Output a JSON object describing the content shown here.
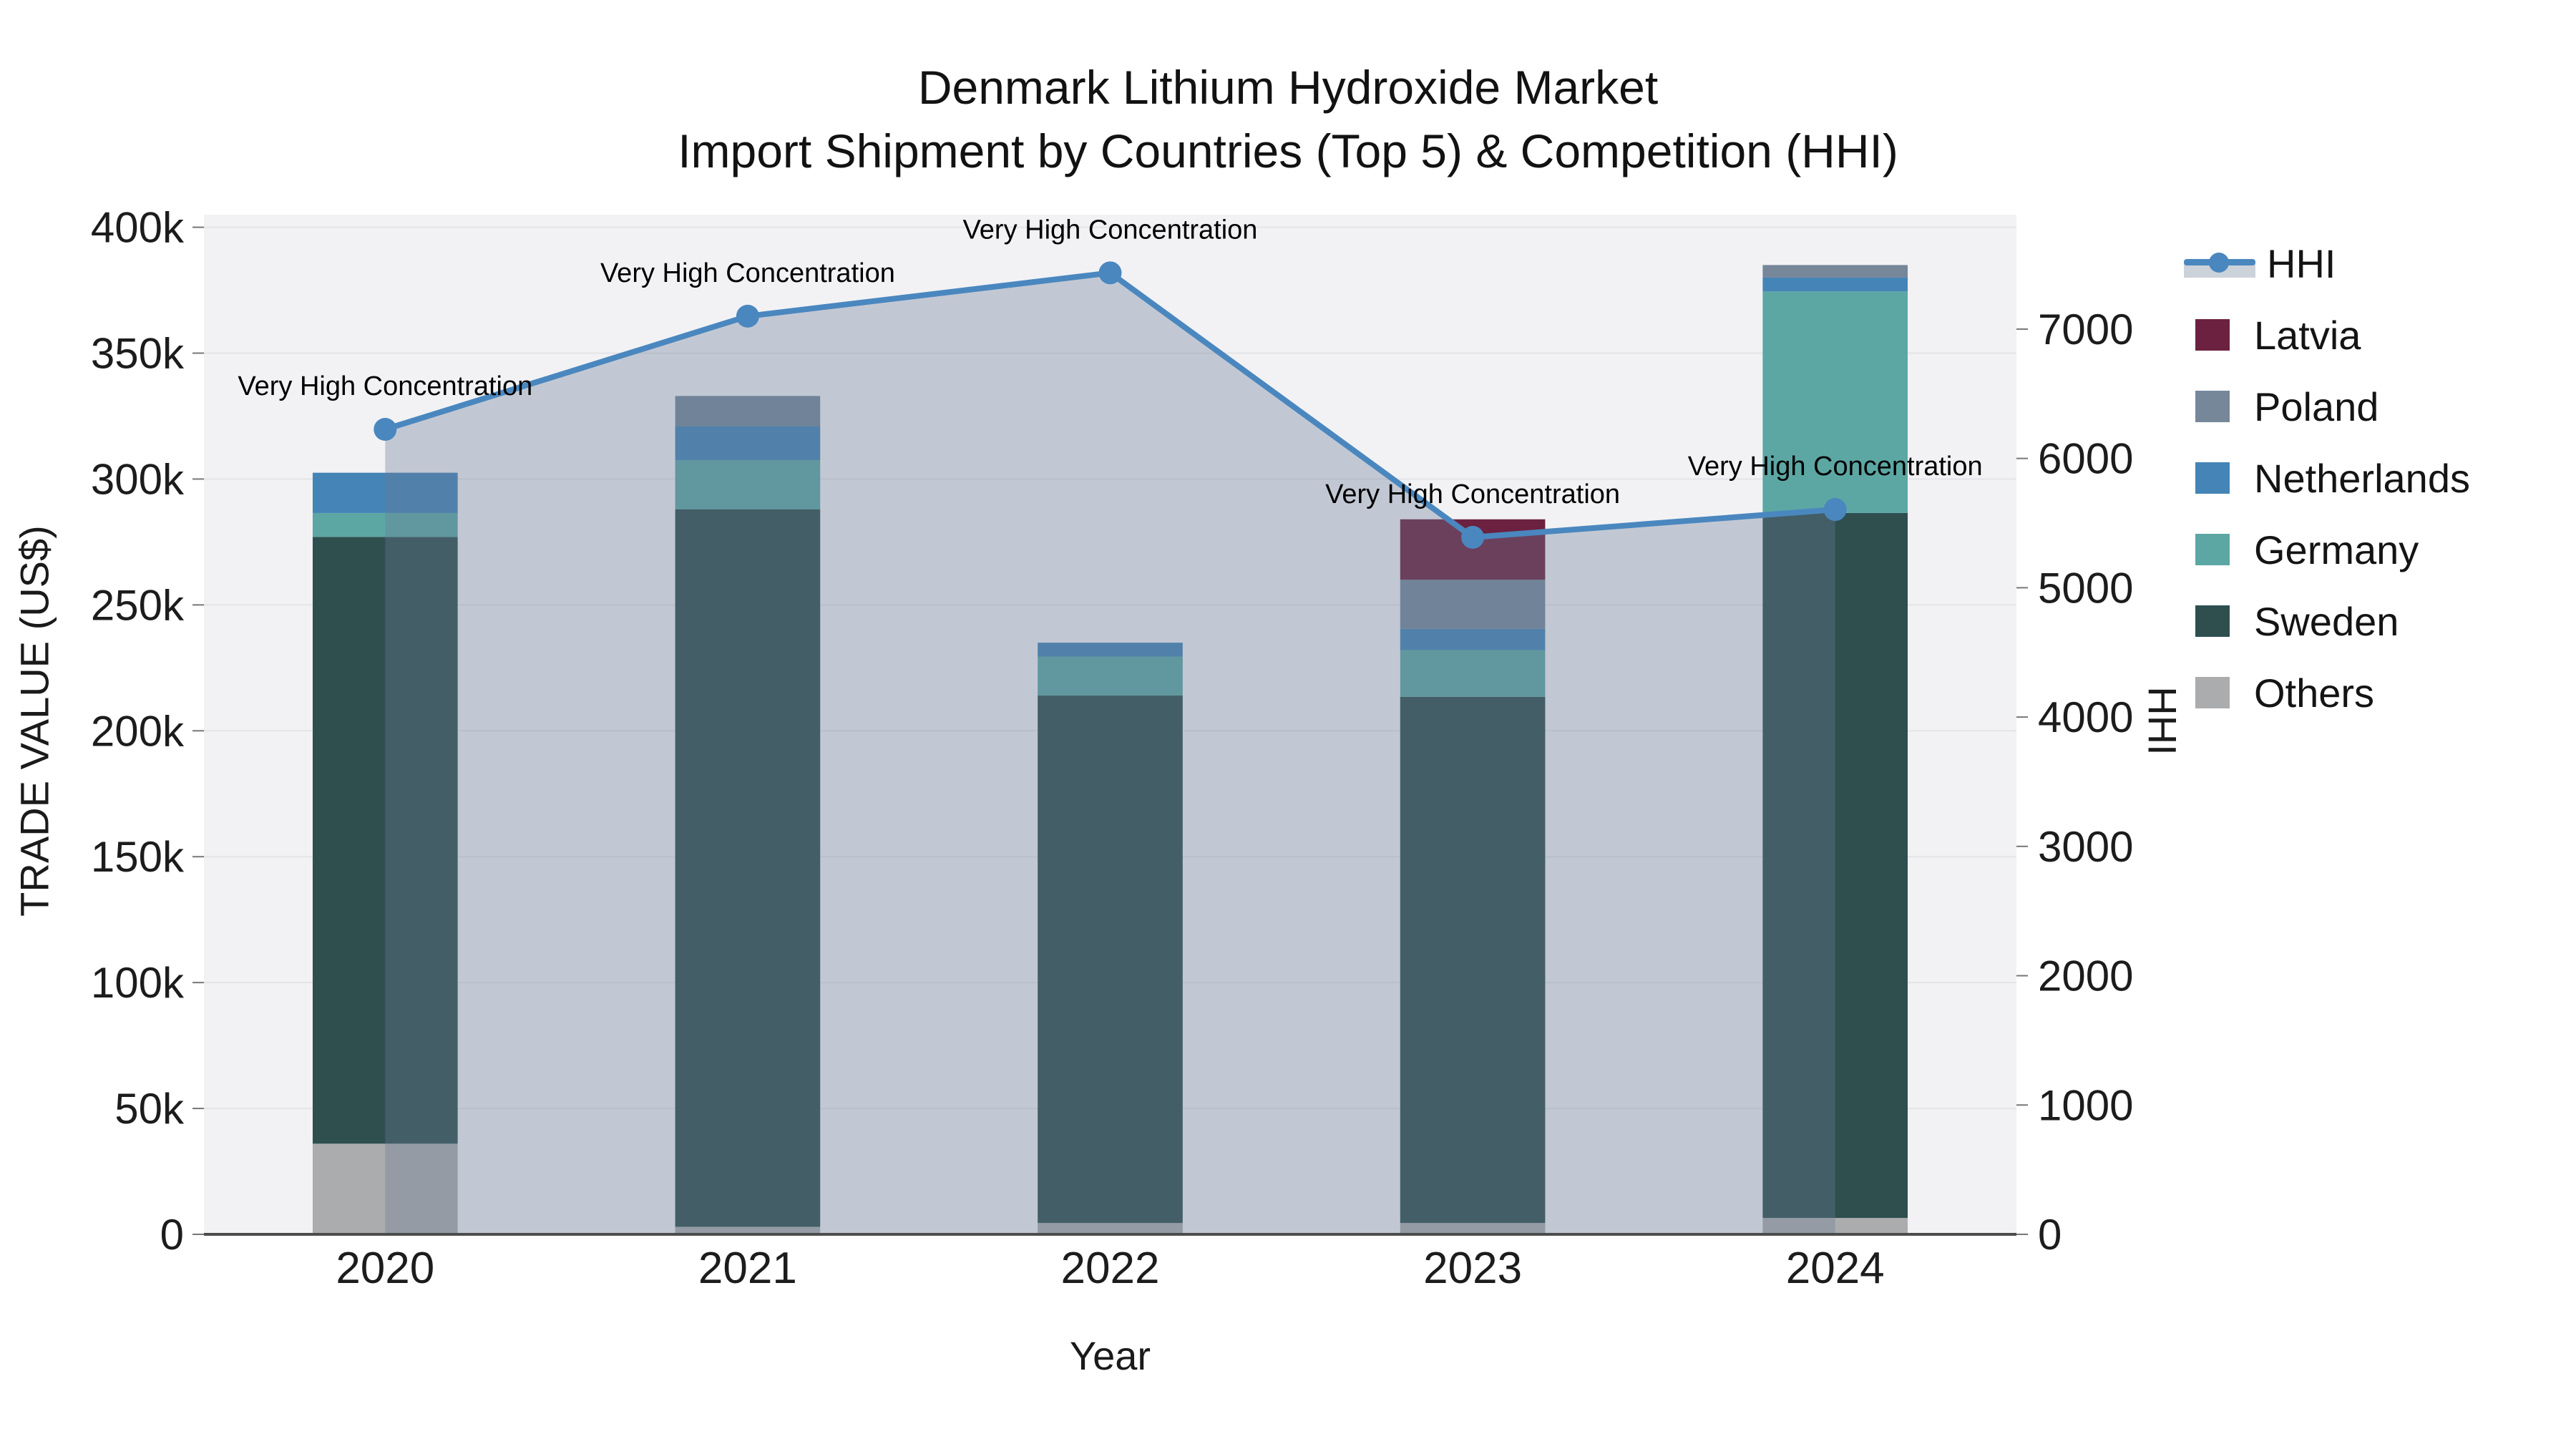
{
  "title": {
    "line1": "Denmark Lithium Hydroxide Market",
    "line2": "Import Shipment by Countries (Top 5) & Competition (HHI)"
  },
  "axes": {
    "x": {
      "title": "Year"
    },
    "y_left": {
      "title": "TRADE VALUE (US$)"
    },
    "y_right": {
      "title": "HHI"
    }
  },
  "legend": {
    "items": [
      {
        "label": "HHI",
        "type": "line",
        "color": "#4a87bf"
      },
      {
        "label": "Latvia",
        "type": "swatch",
        "color": "#6c2140"
      },
      {
        "label": "Poland",
        "type": "swatch",
        "color": "#76879a"
      },
      {
        "label": "Netherlands",
        "type": "swatch",
        "color": "#4484b6"
      },
      {
        "label": "Germany",
        "type": "swatch",
        "color": "#5ca7a4"
      },
      {
        "label": "Sweden",
        "type": "swatch",
        "color": "#2f4f4f"
      },
      {
        "label": "Others",
        "type": "swatch",
        "color": "#abacad"
      }
    ]
  },
  "chart_data": {
    "type": "bar+line",
    "categories": [
      "2020",
      "2021",
      "2022",
      "2023",
      "2024"
    ],
    "bar_stack_order_note": "bottom to top",
    "series": [
      {
        "name": "Others",
        "color": "#abacad",
        "values": [
          36000,
          3000,
          4500,
          4500,
          6500
        ]
      },
      {
        "name": "Sweden",
        "color": "#2f4f4f",
        "values": [
          241000,
          285000,
          209500,
          209000,
          280000
        ]
      },
      {
        "name": "Germany",
        "color": "#5ca7a4",
        "values": [
          9500,
          19500,
          15500,
          18500,
          88000
        ]
      },
      {
        "name": "Netherlands",
        "color": "#4484b6",
        "values": [
          16000,
          13500,
          5500,
          8500,
          5500
        ]
      },
      {
        "name": "Poland",
        "color": "#76879a",
        "values": [
          0,
          12000,
          0,
          19500,
          5000
        ]
      },
      {
        "name": "Latvia",
        "color": "#6c2140",
        "values": [
          0,
          0,
          0,
          24000,
          0
        ]
      }
    ],
    "bar_totals": [
      302500,
      333000,
      235000,
      284000,
      385000
    ],
    "hhi_line": {
      "name": "HHI",
      "color": "#4a87bf",
      "area_fill": "rgba(106,122,148,0.35)",
      "values": [
        6225,
        7100,
        7435,
        5390,
        5605
      ]
    },
    "annotations": [
      {
        "category": "2020",
        "text": "Very High Concentration"
      },
      {
        "category": "2021",
        "text": "Very High Concentration"
      },
      {
        "category": "2022",
        "text": "Very High Concentration"
      },
      {
        "category": "2023",
        "text": "Very High Concentration"
      },
      {
        "category": "2024",
        "text": "Very High Concentration"
      }
    ],
    "xlabel": "Year",
    "ylabel_left": "TRADE VALUE (US$)",
    "ylabel_right": "HHI",
    "y_left_ticks": {
      "values": [
        0,
        50000,
        100000,
        150000,
        200000,
        250000,
        300000,
        350000,
        400000
      ],
      "labels": [
        "0",
        "50k",
        "100k",
        "150k",
        "200k",
        "250k",
        "300k",
        "350k",
        "400k"
      ]
    },
    "y_right_ticks": {
      "values": [
        0,
        1000,
        2000,
        3000,
        4000,
        5000,
        6000,
        7000
      ],
      "labels": [
        "0",
        "1000",
        "2000",
        "3000",
        "4000",
        "5000",
        "6000",
        "7000"
      ]
    },
    "y_left_max": 405000,
    "y_right_max": 7885,
    "grid": true,
    "legend_position": "right",
    "plot_bg": "#f2f2f4",
    "grid_color": "#e3e4e7",
    "axis_line_color": "#4d4d4d",
    "annotation_font_color": "#000000"
  }
}
